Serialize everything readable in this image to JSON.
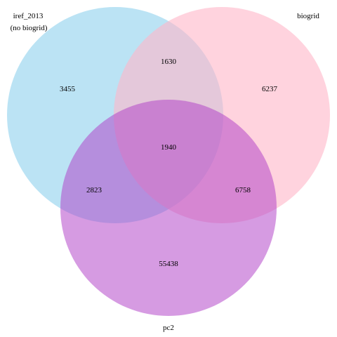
{
  "sets": [
    {
      "key": "iref",
      "label_lines": [
        "iref_2013",
        "(no biogrid)"
      ],
      "color": "#87CEEB"
    },
    {
      "key": "biogrid",
      "label_lines": [
        "biogrid"
      ],
      "color": "#FFB6C8"
    },
    {
      "key": "pc2",
      "label_lines": [
        "pc2"
      ],
      "color": "#B040C8"
    }
  ],
  "regions": {
    "iref_only": "3455",
    "biogrid_only": "6237",
    "pc2_only": "55438",
    "iref_biogrid": "1630",
    "iref_pc2": "2823",
    "biogrid_pc2": "6758",
    "all_three": "1940"
  }
}
